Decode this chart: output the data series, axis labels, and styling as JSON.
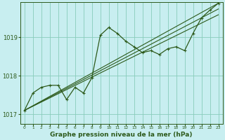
{
  "background_color": "#c8eef0",
  "grid_color": "#88ccbb",
  "line_color": "#2d5a1b",
  "marker_style": "+",
  "title": "Graphe pression niveau de la mer (hPa)",
  "ylim": [
    1016.75,
    1019.9
  ],
  "xlim": [
    -0.5,
    23.5
  ],
  "yticks": [
    1017,
    1018,
    1019
  ],
  "xtick_labels": [
    "0",
    "1",
    "2",
    "3",
    "4",
    "5",
    "6",
    "7",
    "8",
    "9",
    "10",
    "11",
    "12",
    "13",
    "14",
    "15",
    "16",
    "17",
    "18",
    "19",
    "20",
    "21",
    "22",
    "23"
  ],
  "series_main": [
    1017.1,
    1017.55,
    1017.7,
    1017.75,
    1017.75,
    1017.38,
    1017.7,
    1017.55,
    1017.95,
    1019.05,
    1019.25,
    1019.1,
    1018.9,
    1018.75,
    1018.6,
    1018.65,
    1018.55,
    1018.7,
    1018.75,
    1018.65,
    1019.1,
    1019.5,
    1019.7,
    1019.88
  ]
}
